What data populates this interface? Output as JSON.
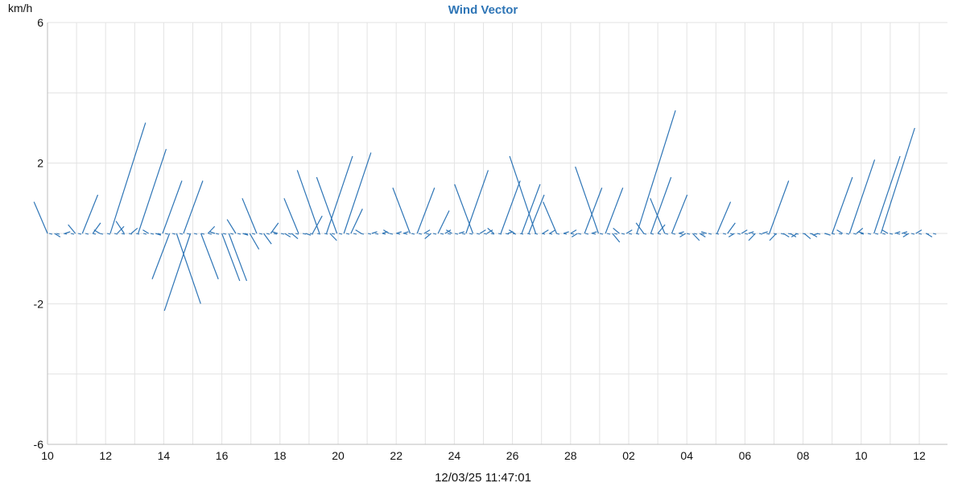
{
  "chart_data": {
    "type": "line",
    "title": "Wind Vector",
    "ylabel": "km/h",
    "xlabel": "12/03/25 11:47:01",
    "ylim": [
      -6,
      6
    ],
    "y_ticks": [
      "6",
      "2",
      "-2",
      "-6"
    ],
    "x_tick_labels": [
      "10",
      "12",
      "14",
      "16",
      "18",
      "20",
      "22",
      "24",
      "26",
      "28",
      "02",
      "04",
      "06",
      "08",
      "10",
      "12"
    ],
    "grid": true,
    "colors": {
      "vector": "#2e75b6",
      "title": "#2e75b6",
      "grid": "#e3e3e3"
    },
    "vectors": [
      {
        "x": 0.0,
        "y0": 0,
        "y1": 0.9
      },
      {
        "x": 0.2,
        "y0": 0,
        "y1": -0.1
      },
      {
        "x": 0.5,
        "y0": 0,
        "y1": 0.05
      },
      {
        "x": 0.8,
        "y0": 0,
        "y1": 0.25
      },
      {
        "x": 1.0,
        "y0": 0,
        "y1": 1.1
      },
      {
        "x": 1.3,
        "y0": 0,
        "y1": 0.3
      },
      {
        "x": 1.5,
        "y0": 0,
        "y1": 0.1
      },
      {
        "x": 1.8,
        "y0": 0,
        "y1": 3.15
      },
      {
        "x": 2.0,
        "y0": 0,
        "y1": 0.2
      },
      {
        "x": 2.2,
        "y0": 0,
        "y1": 0.35
      },
      {
        "x": 2.4,
        "y0": 0,
        "y1": 0.15
      },
      {
        "x": 2.6,
        "y0": 0,
        "y1": 2.4
      },
      {
        "x": 2.9,
        "y0": 0,
        "y1": 0.1
      },
      {
        "x": 3.1,
        "y0": 0,
        "y1": -0.05
      },
      {
        "x": 3.3,
        "y0": 0,
        "y1": 1.5
      },
      {
        "x": 3.5,
        "y0": 0,
        "y1": -1.3
      },
      {
        "x": 3.7,
        "y0": 0,
        "y1": -2.0
      },
      {
        "x": 3.9,
        "y0": 0,
        "y1": 1.5
      },
      {
        "x": 4.1,
        "y0": 0,
        "y1": -2.2
      },
      {
        "x": 4.4,
        "y0": 0,
        "y1": -1.3
      },
      {
        "x": 4.6,
        "y0": 0,
        "y1": 0.2
      },
      {
        "x": 4.8,
        "y0": 0,
        "y1": 0.05
      },
      {
        "x": 5.0,
        "y0": 0,
        "y1": -1.35
      },
      {
        "x": 5.2,
        "y0": 0,
        "y1": -1.35
      },
      {
        "x": 5.4,
        "y0": 0,
        "y1": 0.4
      },
      {
        "x": 5.6,
        "y0": 0,
        "y1": -0.05
      },
      {
        "x": 5.8,
        "y0": 0,
        "y1": -0.45
      },
      {
        "x": 6.0,
        "y0": 0,
        "y1": 1.0
      },
      {
        "x": 6.2,
        "y0": 0,
        "y1": -0.3
      },
      {
        "x": 6.4,
        "y0": 0,
        "y1": 0.3
      },
      {
        "x": 6.6,
        "y0": 0,
        "y1": 0.05
      },
      {
        "x": 6.8,
        "y0": 0,
        "y1": -0.1
      },
      {
        "x": 7.0,
        "y0": 0,
        "y1": -0.15
      },
      {
        "x": 7.2,
        "y0": 0,
        "y1": 1.0
      },
      {
        "x": 7.4,
        "y0": 0,
        "y1": -0.05
      },
      {
        "x": 7.6,
        "y0": 0,
        "y1": 0.5
      },
      {
        "x": 7.8,
        "y0": 0,
        "y1": 1.8
      },
      {
        "x": 8.0,
        "y0": 0,
        "y1": 2.2
      },
      {
        "x": 8.1,
        "y0": 0,
        "y1": -0.2
      },
      {
        "x": 8.3,
        "y0": 0,
        "y1": 1.6
      },
      {
        "x": 8.5,
        "y0": 0,
        "y1": 2.3
      },
      {
        "x": 8.7,
        "y0": 0,
        "y1": 0.7
      },
      {
        "x": 9.0,
        "y0": 0,
        "y1": 0.1
      },
      {
        "x": 9.3,
        "y0": 0,
        "y1": 0.05
      },
      {
        "x": 9.6,
        "y0": 0,
        "y1": 0.05
      },
      {
        "x": 9.8,
        "y0": 0,
        "y1": 0.1
      },
      {
        "x": 10.0,
        "y0": 0,
        "y1": 0.05
      },
      {
        "x": 10.2,
        "y0": 0,
        "y1": 0.05
      },
      {
        "x": 10.4,
        "y0": 0,
        "y1": 1.3
      },
      {
        "x": 10.6,
        "y0": 0,
        "y1": 1.3
      },
      {
        "x": 10.8,
        "y0": 0,
        "y1": 0.1
      },
      {
        "x": 11.0,
        "y0": 0,
        "y1": -0.15
      },
      {
        "x": 11.2,
        "y0": 0,
        "y1": 0.65
      },
      {
        "x": 11.4,
        "y0": 0,
        "y1": 0.1
      },
      {
        "x": 11.6,
        "y0": 0,
        "y1": 0.1
      },
      {
        "x": 11.8,
        "y0": 0,
        "y1": 0.05
      },
      {
        "x": 12.0,
        "y0": 0,
        "y1": 1.8
      },
      {
        "x": 12.2,
        "y0": 0,
        "y1": 1.4
      },
      {
        "x": 12.4,
        "y0": 0,
        "y1": 0.1
      },
      {
        "x": 12.6,
        "y0": 0,
        "y1": 0.1
      },
      {
        "x": 12.8,
        "y0": 0,
        "y1": 0.15
      },
      {
        "x": 13.0,
        "y0": 0,
        "y1": 1.5
      },
      {
        "x": 13.2,
        "y0": 0,
        "y1": 0.05
      },
      {
        "x": 13.4,
        "y0": 0,
        "y1": 0.1
      },
      {
        "x": 13.6,
        "y0": 0,
        "y1": 1.4
      },
      {
        "x": 13.8,
        "y0": 0,
        "y1": 1.1
      },
      {
        "x": 14.0,
        "y0": 0,
        "y1": 2.2
      },
      {
        "x": 14.2,
        "y0": 0,
        "y1": 0.1
      },
      {
        "x": 14.4,
        "y0": 0,
        "y1": 0.1
      },
      {
        "x": 14.6,
        "y0": 0,
        "y1": 0.9
      },
      {
        "x": 14.8,
        "y0": 0,
        "y1": 0.05
      },
      {
        "x": 15.0,
        "y0": 0,
        "y1": 0.1
      },
      {
        "x": 15.2,
        "y0": 0,
        "y1": -0.1
      },
      {
        "x": 15.4,
        "y0": 0,
        "y1": 1.3
      },
      {
        "x": 15.6,
        "y0": 0,
        "y1": 0.05
      },
      {
        "x": 15.8,
        "y0": 0,
        "y1": 1.9
      },
      {
        "x": 16.0,
        "y0": 0,
        "y1": 1.3
      },
      {
        "x": 16.2,
        "y0": 0,
        "y1": -0.25
      },
      {
        "x": 16.4,
        "y0": 0,
        "y1": 0.15
      },
      {
        "x": 16.6,
        "y0": 0,
        "y1": 0.1
      },
      {
        "x": 16.9,
        "y0": 0,
        "y1": 3.5
      },
      {
        "x": 17.1,
        "y0": 0,
        "y1": 0.3
      },
      {
        "x": 17.3,
        "y0": 0,
        "y1": 1.6
      },
      {
        "x": 17.5,
        "y0": 0,
        "y1": 0.25
      },
      {
        "x": 17.7,
        "y0": 0,
        "y1": 1.0
      },
      {
        "x": 17.9,
        "y0": 0,
        "y1": 1.1
      },
      {
        "x": 18.1,
        "y0": 0,
        "y1": 0.05
      },
      {
        "x": 18.3,
        "y0": 0,
        "y1": -0.1
      },
      {
        "x": 18.5,
        "y0": 0,
        "y1": -0.2
      },
      {
        "x": 18.7,
        "y0": 0,
        "y1": -0.1
      },
      {
        "x": 18.9,
        "y0": 0,
        "y1": 0.05
      },
      {
        "x": 19.2,
        "y0": 0,
        "y1": 0.9
      },
      {
        "x": 19.5,
        "y0": 0,
        "y1": 0.3
      },
      {
        "x": 19.7,
        "y0": 0,
        "y1": -0.1
      },
      {
        "x": 19.9,
        "y0": 0,
        "y1": 0.1
      },
      {
        "x": 20.1,
        "y0": 0,
        "y1": 0.05
      },
      {
        "x": 20.3,
        "y0": 0,
        "y1": -0.2
      },
      {
        "x": 20.5,
        "y0": 0,
        "y1": 0.05
      },
      {
        "x": 20.7,
        "y0": 0,
        "y1": 1.5
      },
      {
        "x": 20.9,
        "y0": 0,
        "y1": -0.2
      },
      {
        "x": 21.1,
        "y0": 0,
        "y1": -0.1
      },
      {
        "x": 21.3,
        "y0": 0,
        "y1": -0.1
      },
      {
        "x": 21.5,
        "y0": 0,
        "y1": -0.1
      },
      {
        "x": 21.7,
        "y0": 0,
        "y1": -0.15
      },
      {
        "x": 21.9,
        "y0": 0,
        "y1": -0.1
      },
      {
        "x": 22.1,
        "y0": 0,
        "y1": -0.05
      },
      {
        "x": 22.3,
        "y0": 0,
        "y1": -0.05
      },
      {
        "x": 22.5,
        "y0": 0,
        "y1": 1.6
      },
      {
        "x": 22.8,
        "y0": 0,
        "y1": 0.1
      },
      {
        "x": 23.0,
        "y0": 0,
        "y1": 2.1
      },
      {
        "x": 23.2,
        "y0": 0,
        "y1": 0.15
      },
      {
        "x": 23.4,
        "y0": 0,
        "y1": 0.05
      },
      {
        "x": 23.7,
        "y0": 0,
        "y1": 2.2
      },
      {
        "x": 23.9,
        "y0": 0,
        "y1": 3.0
      },
      {
        "x": 24.1,
        "y0": 0,
        "y1": 0.1
      },
      {
        "x": 24.3,
        "y0": 0,
        "y1": 0.05
      },
      {
        "x": 24.5,
        "y0": 0,
        "y1": 0.05
      },
      {
        "x": 24.7,
        "y0": 0,
        "y1": -0.1
      },
      {
        "x": 24.9,
        "y0": 0,
        "y1": 0.1
      },
      {
        "x": 25.2,
        "y0": 0,
        "y1": -0.1
      }
    ]
  }
}
